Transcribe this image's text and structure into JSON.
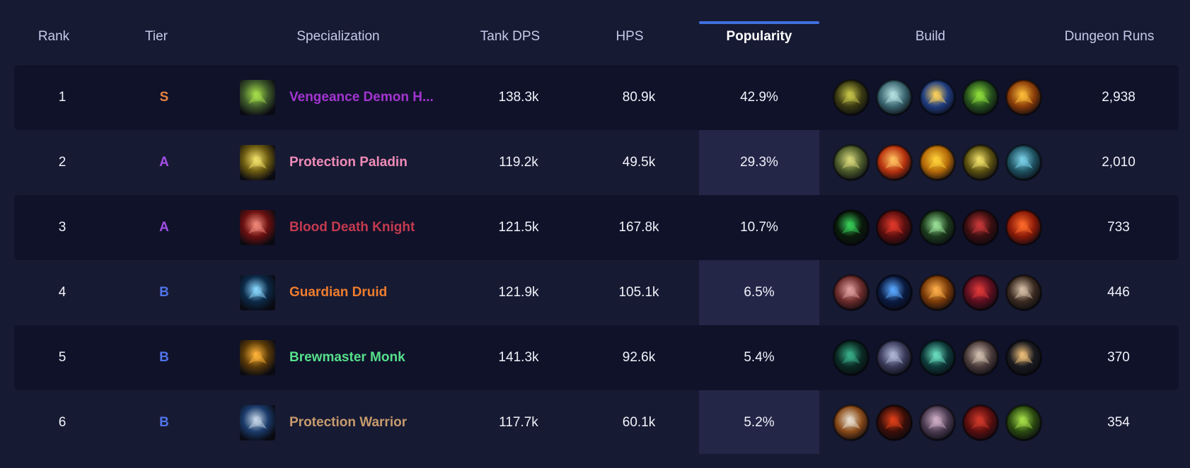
{
  "columns": {
    "rank": "Rank",
    "tier": "Tier",
    "specialization": "Specialization",
    "tank_dps": "Tank DPS",
    "hps": "HPS",
    "popularity": "Popularity",
    "build": "Build",
    "dungeon_runs": "Dungeon Runs"
  },
  "sorted_column": "popularity",
  "colors": {
    "background": "#171a33",
    "row_dark": "#10122a",
    "sort_accent": "#3f6fe0",
    "tier_S": "#e8843f",
    "tier_A": "#a24ee6",
    "tier_B": "#4f74e8"
  },
  "rows": [
    {
      "rank": "1",
      "tier": "S",
      "spec": "Vengeance Demon H...",
      "spec_color": "#a335d1",
      "spec_icon": "vengeance-demon-hunter-icon",
      "icon_colors": [
        "#3e5a2a",
        "#a6e04a"
      ],
      "tank_dps": "138.3k",
      "hps": "80.9k",
      "popularity": "42.9%",
      "dungeon_runs": "2,938",
      "build": [
        {
          "icon": "demon-skull-talent-icon",
          "colors": [
            "#3a3a12",
            "#c8c54a"
          ]
        },
        {
          "icon": "spectral-skull-talent-icon",
          "colors": [
            "#3b6670",
            "#b7e2e3"
          ]
        },
        {
          "icon": "light-burst-talent-icon",
          "colors": [
            "#1f3d80",
            "#ffd35a"
          ]
        },
        {
          "icon": "fel-demon-talent-icon",
          "colors": [
            "#25501c",
            "#8fe03c"
          ]
        },
        {
          "icon": "fire-fist-talent-icon",
          "colors": [
            "#8a3c08",
            "#ffbe3a"
          ]
        }
      ]
    },
    {
      "rank": "2",
      "tier": "A",
      "spec": "Protection Paladin",
      "spec_color": "#f08cb8",
      "spec_icon": "protection-paladin-icon",
      "icon_colors": [
        "#6b5a10",
        "#f2e26a"
      ],
      "tank_dps": "119.2k",
      "hps": "49.5k",
      "popularity": "29.3%",
      "dungeon_runs": "2,010",
      "build": [
        {
          "icon": "lion-head-talent-icon",
          "colors": [
            "#4b5a2a",
            "#d7d77a"
          ]
        },
        {
          "icon": "holy-pillar-talent-icon",
          "colors": [
            "#b8320e",
            "#ffc261"
          ]
        },
        {
          "icon": "golden-avatar-talent-icon",
          "colors": [
            "#b56a08",
            "#ffd23a"
          ]
        },
        {
          "icon": "golden-helm-talent-icon",
          "colors": [
            "#5a5010",
            "#f0e06a"
          ]
        },
        {
          "icon": "rune-shield-talent-icon",
          "colors": [
            "#1e5160",
            "#7ad0e8"
          ]
        }
      ]
    },
    {
      "rank": "3",
      "tier": "A",
      "spec": "Blood Death Knight",
      "spec_color": "#c43a4e",
      "spec_icon": "blood-death-knight-icon",
      "icon_colors": [
        "#6a1010",
        "#f28a7a"
      ],
      "tank_dps": "121.5k",
      "hps": "167.8k",
      "popularity": "10.7%",
      "dungeon_runs": "733",
      "build": [
        {
          "icon": "dark-portal-talent-icon",
          "colors": [
            "#0a1a0a",
            "#38d05a"
          ]
        },
        {
          "icon": "blood-skull-talent-icon",
          "colors": [
            "#5a0e0e",
            "#e23a2a"
          ]
        },
        {
          "icon": "green-skull-talent-icon",
          "colors": [
            "#1c3a1c",
            "#9ae29a"
          ]
        },
        {
          "icon": "crimson-blade-talent-icon",
          "colors": [
            "#3a0e10",
            "#c83a3a"
          ]
        },
        {
          "icon": "heart-flame-talent-icon",
          "colors": [
            "#8a1a08",
            "#ff6a2a"
          ]
        }
      ]
    },
    {
      "rank": "4",
      "tier": "B",
      "spec": "Guardian Druid",
      "spec_color": "#ef7d2e",
      "spec_icon": "guardian-druid-icon",
      "icon_colors": [
        "#0c2a48",
        "#8ad8ff"
      ],
      "tank_dps": "121.9k",
      "hps": "105.1k",
      "popularity": "6.5%",
      "dungeon_runs": "446",
      "build": [
        {
          "icon": "claw-swipe-talent-icon",
          "colors": [
            "#6a2a2a",
            "#e0a0a0"
          ]
        },
        {
          "icon": "moonfire-talent-icon",
          "colors": [
            "#0a1a40",
            "#5aa8ff"
          ]
        },
        {
          "icon": "nature-totem-talent-icon",
          "colors": [
            "#7a3a08",
            "#ffb04a"
          ]
        },
        {
          "icon": "bear-roar-talent-icon",
          "colors": [
            "#5a0e1e",
            "#e03a3a"
          ]
        },
        {
          "icon": "bear-claw-talent-icon",
          "colors": [
            "#3a2a20",
            "#d8c0a8"
          ]
        }
      ]
    },
    {
      "rank": "5",
      "tier": "B",
      "spec": "Brewmaster Monk",
      "spec_color": "#55e08a",
      "spec_icon": "brewmaster-monk-icon",
      "icon_colors": [
        "#5a3a08",
        "#ffb43a"
      ],
      "tank_dps": "141.3k",
      "hps": "92.6k",
      "popularity": "5.4%",
      "dungeon_runs": "370",
      "build": [
        {
          "icon": "jade-vortex-talent-icon",
          "colors": [
            "#0a2a22",
            "#3ab08a"
          ]
        },
        {
          "icon": "monk-strike-talent-icon",
          "colors": [
            "#3a3a5a",
            "#b0b8d8"
          ]
        },
        {
          "icon": "jade-serpent-talent-icon",
          "colors": [
            "#0e3a3a",
            "#6ae0c0"
          ]
        },
        {
          "icon": "ironskin-talent-icon",
          "colors": [
            "#4a3a3a",
            "#d0c0b0"
          ]
        },
        {
          "icon": "starry-ox-talent-icon",
          "colors": [
            "#1a1a20",
            "#f0c07a"
          ]
        }
      ]
    },
    {
      "rank": "6",
      "tier": "B",
      "spec": "Protection Warrior",
      "spec_color": "#c69b6d",
      "spec_icon": "protection-warrior-icon",
      "icon_colors": [
        "#1a3a6a",
        "#c8d8e8"
      ],
      "tank_dps": "117.7k",
      "hps": "60.1k",
      "popularity": "5.2%",
      "dungeon_runs": "354",
      "build": [
        {
          "icon": "silver-shield-talent-icon",
          "colors": [
            "#8a4a18",
            "#e8e0d0"
          ]
        },
        {
          "icon": "fiery-slam-talent-icon",
          "colors": [
            "#3a0e08",
            "#e0401a"
          ]
        },
        {
          "icon": "battle-shout-talent-icon",
          "colors": [
            "#4a3a50",
            "#d0b0c8"
          ]
        },
        {
          "icon": "demon-rage-talent-icon",
          "colors": [
            "#5a0e0e",
            "#d03a2a"
          ]
        },
        {
          "icon": "green-orc-talent-icon",
          "colors": [
            "#2a4a10",
            "#a8e04a"
          ]
        }
      ]
    }
  ]
}
